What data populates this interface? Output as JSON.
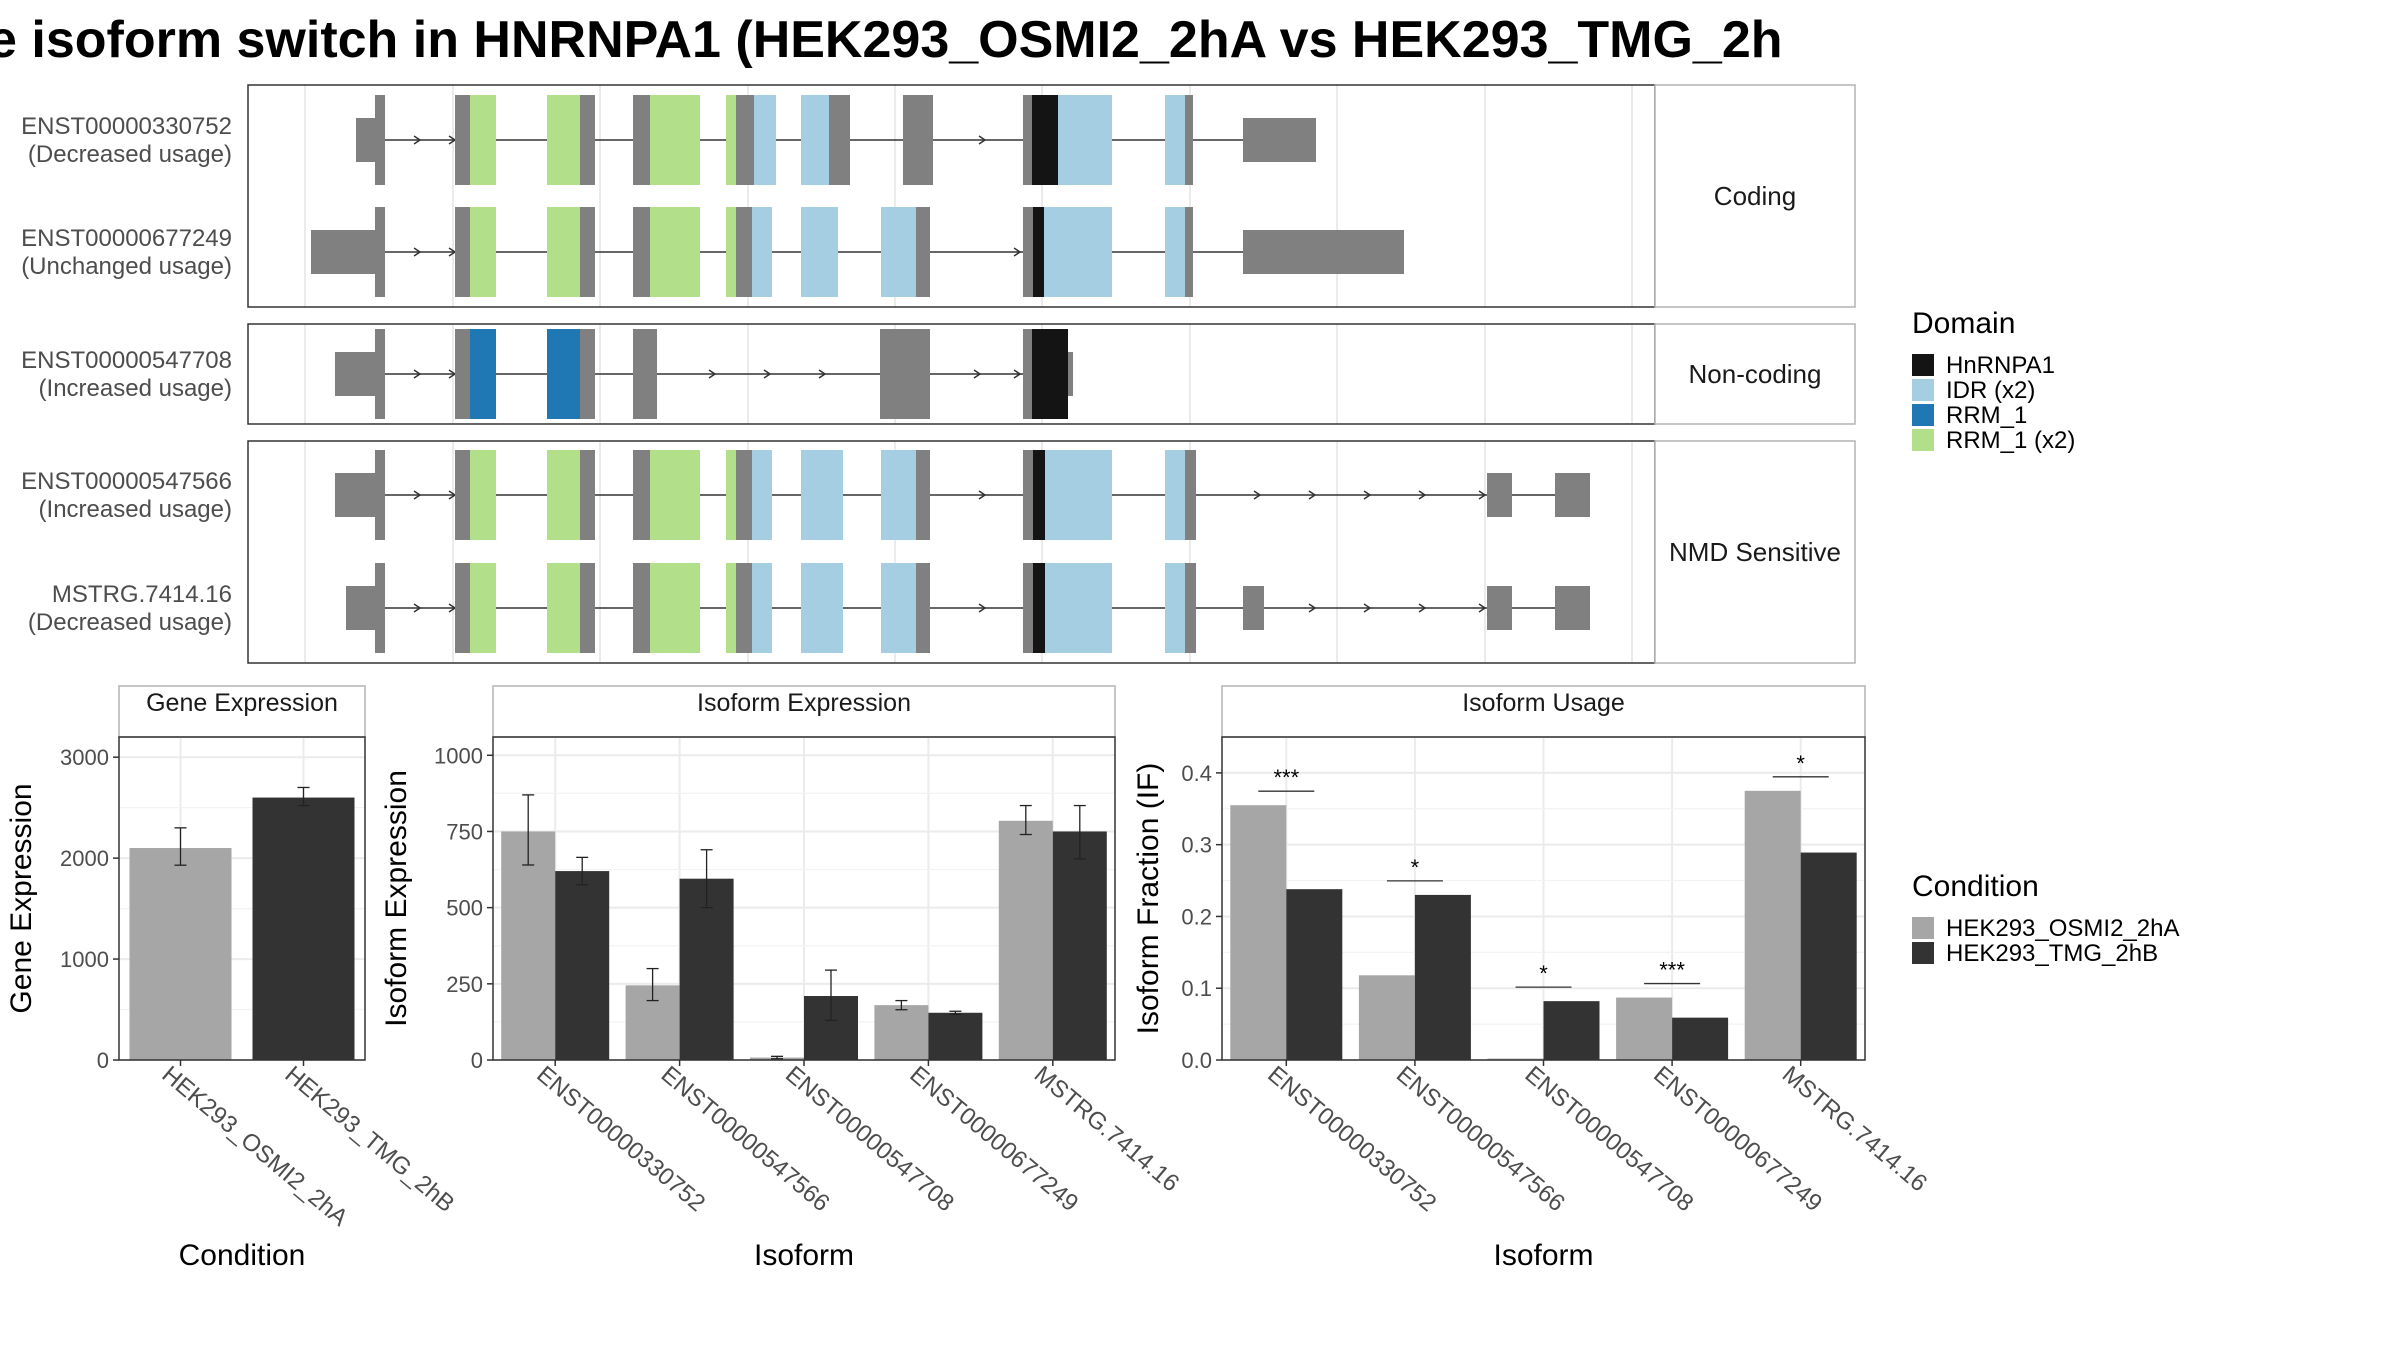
{
  "title": "e isoform switch in HNRNPA1 (HEK293_OSMI2_2hA vs HEK293_TMG_2h",
  "structure": {
    "facets": [
      "Coding",
      "Non-coding",
      "NMD Sensitive"
    ],
    "isoforms": [
      {
        "id": "ENST00000330752",
        "usage": "(Decreased usage)",
        "facet": "Coding"
      },
      {
        "id": "ENST00000677249",
        "usage": "(Unchanged usage)",
        "facet": "Coding"
      },
      {
        "id": "ENST00000547708",
        "usage": "(Increased usage)",
        "facet": "Non-coding"
      },
      {
        "id": "ENST00000547566",
        "usage": "(Increased usage)",
        "facet": "NMD Sensitive"
      },
      {
        "id": "MSTRG.7414.16",
        "usage": "(Decreased usage)",
        "facet": "NMD Sensitive"
      }
    ]
  },
  "legend_domain": {
    "title": "Domain",
    "items": [
      {
        "label": "HnRNPA1",
        "color": "#141414"
      },
      {
        "label": "IDR (x2)",
        "color": "#a6cee3"
      },
      {
        "label": "RRM_1",
        "color": "#1f78b4"
      },
      {
        "label": "RRM_1 (x2)",
        "color": "#b2df8a"
      }
    ]
  },
  "legend_condition": {
    "title": "Condition",
    "items": [
      {
        "label": "HEK293_OSMI2_2hA",
        "color": "#a6a6a6"
      },
      {
        "label": "HEK293_TMG_2hB",
        "color": "#333333"
      }
    ]
  },
  "chart_data": [
    {
      "type": "bar",
      "title": "Gene Expression",
      "xlabel": "Condition",
      "ylabel": "Gene Expression",
      "ylim": [
        0,
        3200
      ],
      "yticks": [
        0,
        1000,
        2000,
        3000
      ],
      "categories": [
        "HEK293_OSMI2_2hA",
        "HEK293_TMG_2hB"
      ],
      "values": [
        2100,
        2600
      ],
      "error_low": [
        1930,
        2520
      ],
      "error_high": [
        2300,
        2700
      ],
      "grid": true
    },
    {
      "type": "bar",
      "title": "Isoform Expression",
      "xlabel": "Isoform",
      "ylabel": "Isoform Expression",
      "ylim": [
        0,
        1060
      ],
      "yticks": [
        0,
        250,
        500,
        750,
        1000
      ],
      "categories": [
        "ENST00000330752",
        "ENST00000547566",
        "ENST00000547708",
        "ENST00000677249",
        "MSTRG.7414.16"
      ],
      "series": [
        {
          "name": "HEK293_OSMI2_2hA",
          "values": [
            750,
            245,
            8,
            180,
            785
          ],
          "error_low": [
            640,
            195,
            4,
            165,
            740
          ],
          "error_high": [
            870,
            300,
            12,
            195,
            835
          ]
        },
        {
          "name": "HEK293_TMG_2hB",
          "values": [
            620,
            595,
            210,
            155,
            750
          ],
          "error_low": [
            575,
            500,
            130,
            150,
            660
          ],
          "error_high": [
            665,
            690,
            295,
            160,
            835
          ]
        }
      ],
      "grid": true
    },
    {
      "type": "bar",
      "title": "Isoform Usage",
      "xlabel": "Isoform",
      "ylabel": "Isoform Fraction (IF)",
      "ylim": [
        0,
        0.45
      ],
      "yticks": [
        0.0,
        0.1,
        0.2,
        0.3,
        0.4
      ],
      "ytick_labels": [
        "0.0",
        "0.1",
        "0.2",
        "0.3",
        "0.4"
      ],
      "categories": [
        "ENST00000330752",
        "ENST00000547566",
        "ENST00000547708",
        "ENST00000677249",
        "MSTRG.7414.16"
      ],
      "series": [
        {
          "name": "HEK293_OSMI2_2hA",
          "values": [
            0.355,
            0.118,
            0.002,
            0.087,
            0.375
          ]
        },
        {
          "name": "HEK293_TMG_2hB",
          "values": [
            0.238,
            0.23,
            0.082,
            0.059,
            0.289
          ]
        }
      ],
      "significance": [
        "***",
        "*",
        "*",
        "***",
        "*"
      ],
      "grid": true
    }
  ]
}
